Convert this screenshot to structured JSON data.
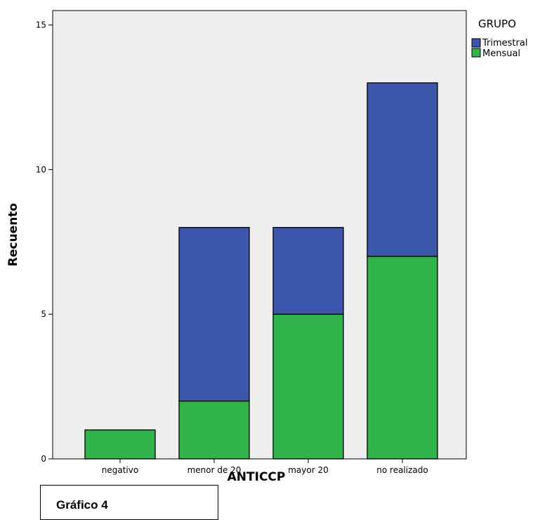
{
  "caption": "Gráfico 4",
  "colors": {
    "plot_bg": "#eeeeee",
    "trimestral": "#3c56ab",
    "mensual": "#31b54a",
    "bar_stroke": "#000000"
  },
  "chart_data": {
    "type": "bar",
    "stacked": true,
    "title": "",
    "xlabel": "ANTICCP",
    "ylabel": "Recuento",
    "categories": [
      "negativo",
      "menor de 20",
      "mayor 20",
      "no realizado"
    ],
    "series": [
      {
        "name": "Mensual",
        "values": [
          1,
          2,
          5,
          7
        ],
        "color": "#31b54a"
      },
      {
        "name": "Trimestral",
        "values": [
          0,
          6,
          3,
          6
        ],
        "color": "#3c56ab"
      }
    ],
    "ylim": [
      0,
      15.5
    ],
    "yticks": [
      0,
      5,
      10,
      15
    ],
    "grid": false,
    "legend": {
      "title": "GRUPO",
      "position": "top-right",
      "entries": [
        "Trimestral",
        "Mensual"
      ]
    }
  }
}
